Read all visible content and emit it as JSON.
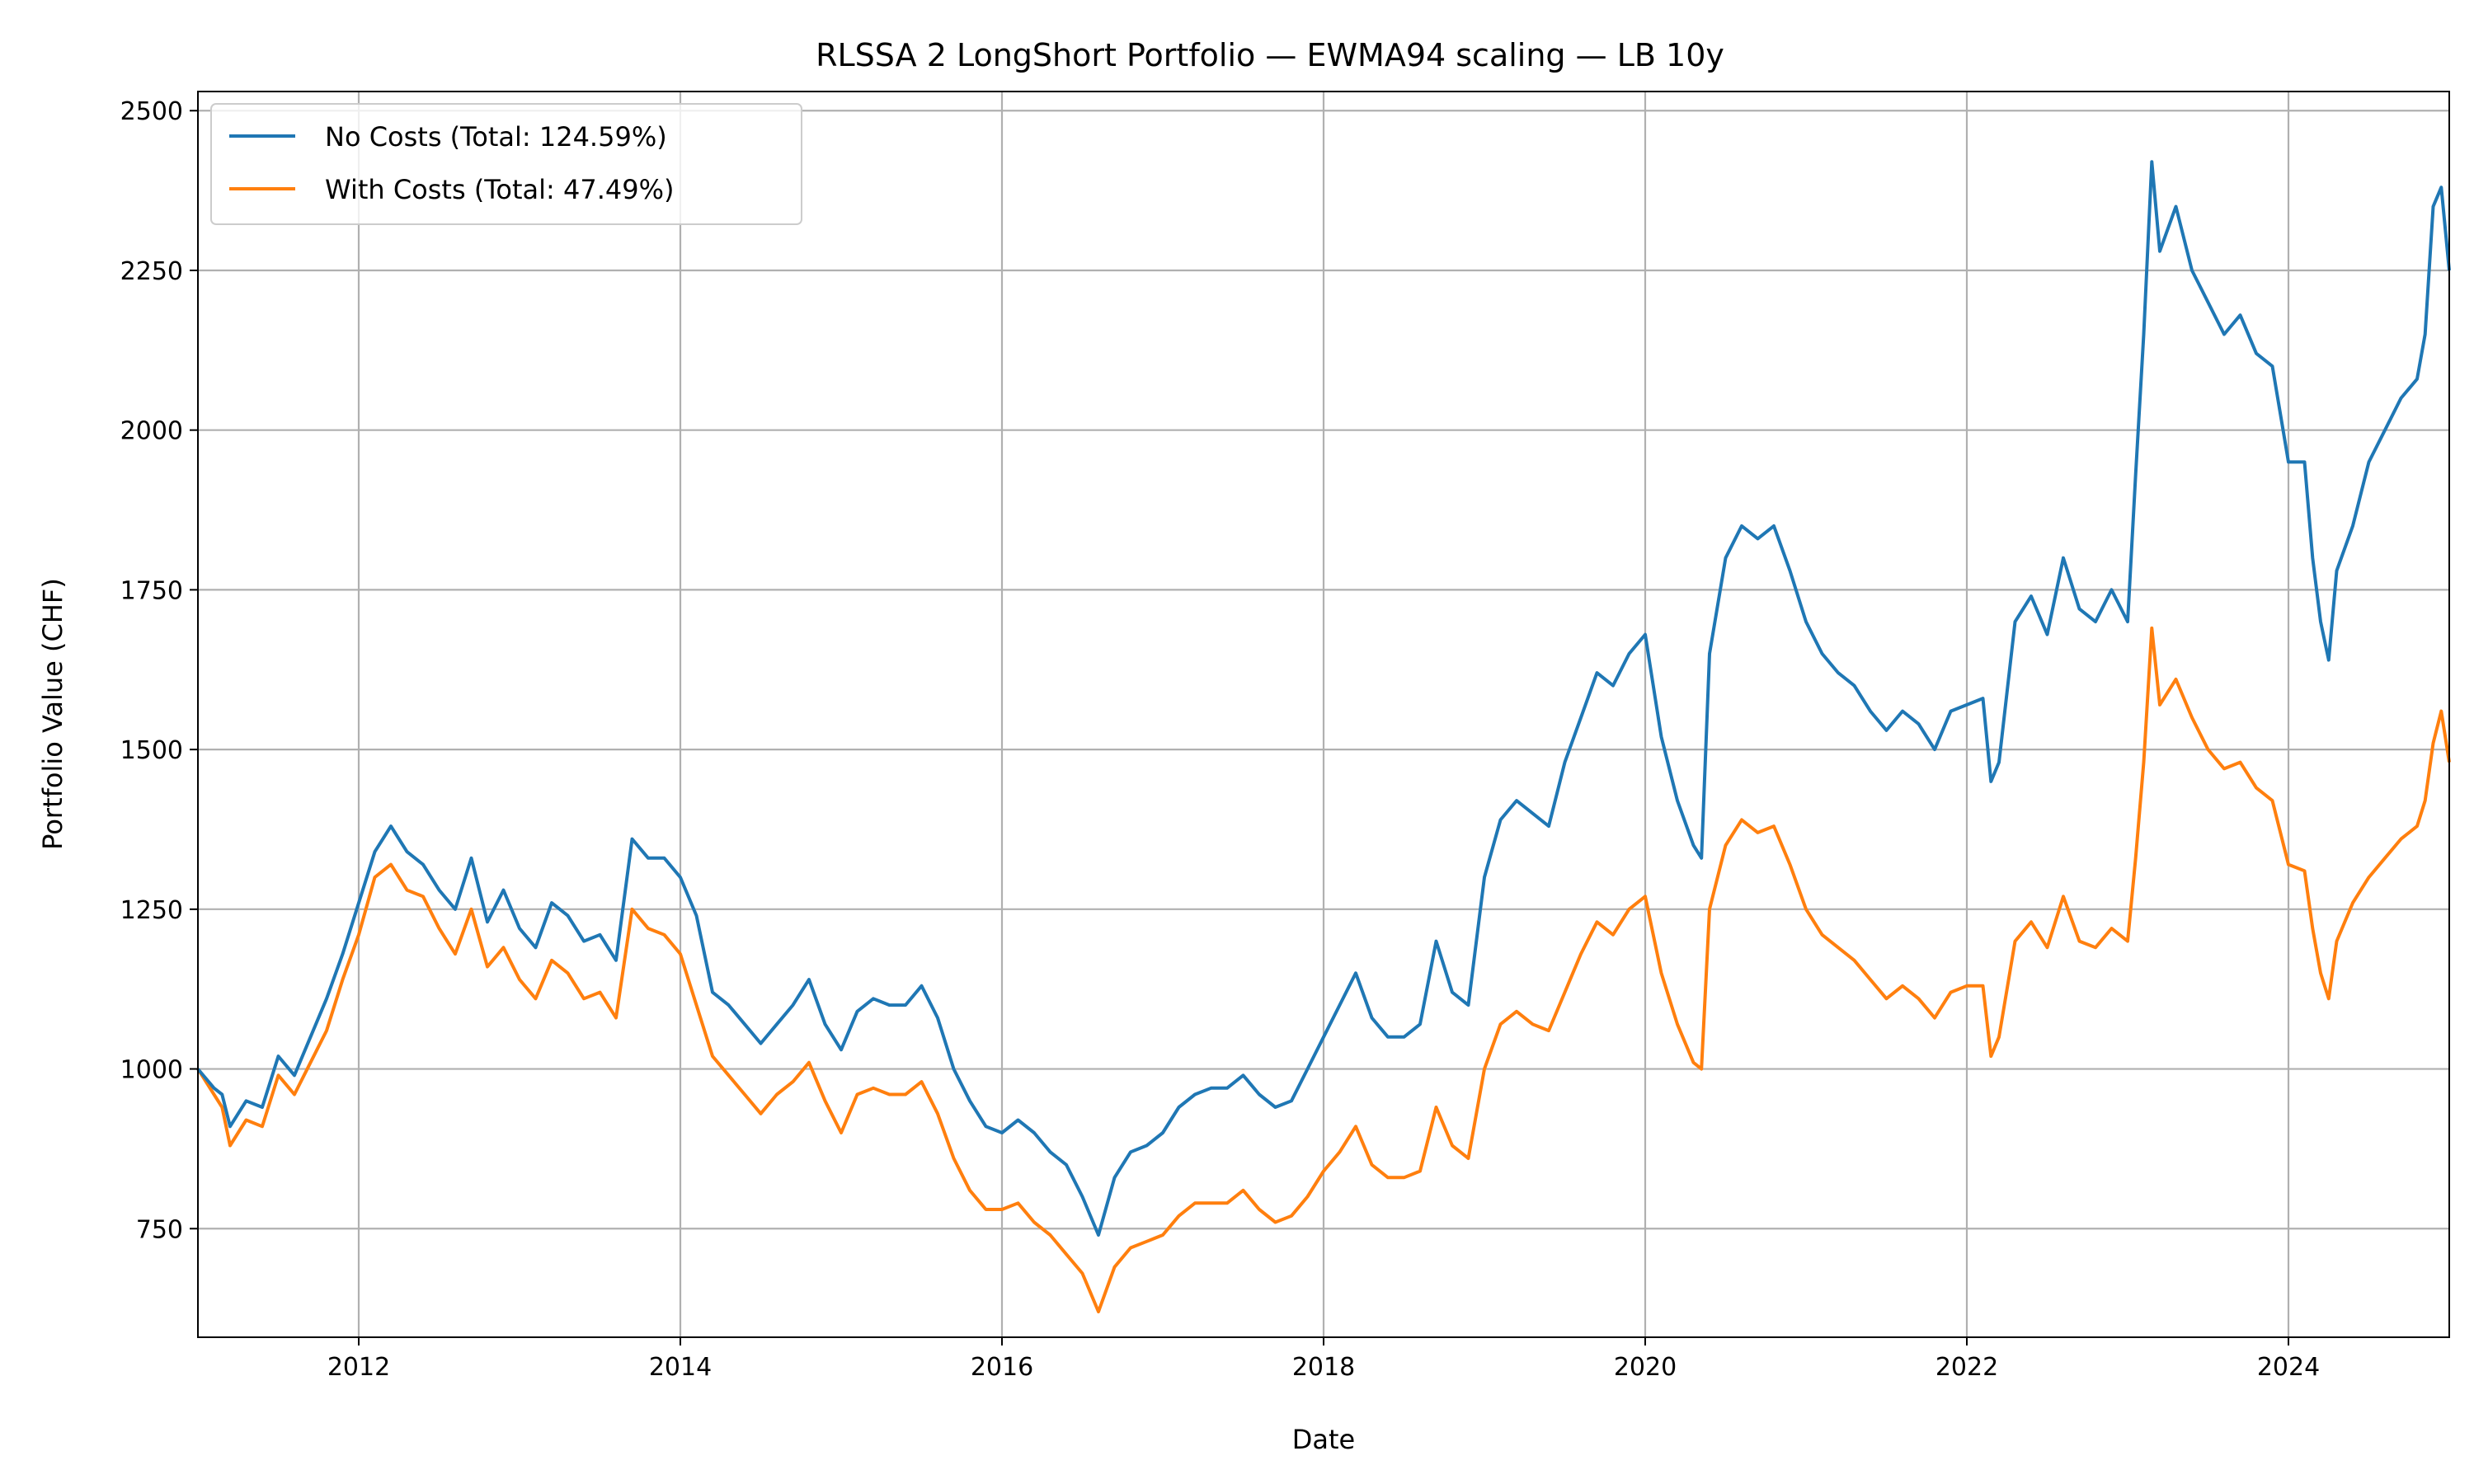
{
  "chart_data": {
    "type": "line",
    "title": "RLSSA 2 LongShort Portfolio — EWMA94 scaling — LB 10y",
    "xlabel": "Date",
    "ylabel": "Portfolio Value (CHF)",
    "x_range": [
      2011.0,
      2025.0
    ],
    "ylim": [
      580,
      2530
    ],
    "x_ticks": [
      2012,
      2014,
      2016,
      2018,
      2020,
      2022,
      2024
    ],
    "y_ticks": [
      750,
      1000,
      1250,
      1500,
      1750,
      2000,
      2250,
      2500
    ],
    "grid": true,
    "legend_position": "top-left",
    "series": [
      {
        "name": "No Costs (Total: 124.59%)",
        "color": "#1f77b4",
        "points": [
          [
            2011.0,
            1000
          ],
          [
            2011.1,
            970
          ],
          [
            2011.15,
            960
          ],
          [
            2011.2,
            910
          ],
          [
            2011.3,
            950
          ],
          [
            2011.4,
            940
          ],
          [
            2011.5,
            1020
          ],
          [
            2011.6,
            990
          ],
          [
            2011.7,
            1050
          ],
          [
            2011.8,
            1110
          ],
          [
            2011.9,
            1180
          ],
          [
            2012.0,
            1260
          ],
          [
            2012.1,
            1340
          ],
          [
            2012.2,
            1380
          ],
          [
            2012.3,
            1340
          ],
          [
            2012.4,
            1320
          ],
          [
            2012.5,
            1280
          ],
          [
            2012.6,
            1250
          ],
          [
            2012.7,
            1330
          ],
          [
            2012.8,
            1230
          ],
          [
            2012.9,
            1280
          ],
          [
            2013.0,
            1220
          ],
          [
            2013.1,
            1190
          ],
          [
            2013.2,
            1260
          ],
          [
            2013.3,
            1240
          ],
          [
            2013.4,
            1200
          ],
          [
            2013.5,
            1210
          ],
          [
            2013.6,
            1170
          ],
          [
            2013.7,
            1360
          ],
          [
            2013.8,
            1330
          ],
          [
            2013.9,
            1330
          ],
          [
            2014.0,
            1300
          ],
          [
            2014.1,
            1240
          ],
          [
            2014.2,
            1120
          ],
          [
            2014.3,
            1100
          ],
          [
            2014.4,
            1070
          ],
          [
            2014.5,
            1040
          ],
          [
            2014.6,
            1070
          ],
          [
            2014.7,
            1100
          ],
          [
            2014.8,
            1140
          ],
          [
            2014.9,
            1070
          ],
          [
            2015.0,
            1030
          ],
          [
            2015.1,
            1090
          ],
          [
            2015.2,
            1110
          ],
          [
            2015.3,
            1100
          ],
          [
            2015.4,
            1100
          ],
          [
            2015.5,
            1130
          ],
          [
            2015.6,
            1080
          ],
          [
            2015.7,
            1000
          ],
          [
            2015.8,
            950
          ],
          [
            2015.9,
            910
          ],
          [
            2016.0,
            900
          ],
          [
            2016.1,
            920
          ],
          [
            2016.2,
            900
          ],
          [
            2016.3,
            870
          ],
          [
            2016.4,
            850
          ],
          [
            2016.5,
            800
          ],
          [
            2016.6,
            740
          ],
          [
            2016.7,
            830
          ],
          [
            2016.8,
            870
          ],
          [
            2016.9,
            880
          ],
          [
            2017.0,
            900
          ],
          [
            2017.1,
            940
          ],
          [
            2017.2,
            960
          ],
          [
            2017.3,
            970
          ],
          [
            2017.4,
            970
          ],
          [
            2017.5,
            990
          ],
          [
            2017.6,
            960
          ],
          [
            2017.7,
            940
          ],
          [
            2017.8,
            950
          ],
          [
            2017.9,
            1000
          ],
          [
            2018.0,
            1050
          ],
          [
            2018.1,
            1100
          ],
          [
            2018.2,
            1150
          ],
          [
            2018.3,
            1080
          ],
          [
            2018.4,
            1050
          ],
          [
            2018.5,
            1050
          ],
          [
            2018.6,
            1070
          ],
          [
            2018.7,
            1200
          ],
          [
            2018.8,
            1120
          ],
          [
            2018.9,
            1100
          ],
          [
            2019.0,
            1300
          ],
          [
            2019.1,
            1390
          ],
          [
            2019.2,
            1420
          ],
          [
            2019.3,
            1400
          ],
          [
            2019.4,
            1380
          ],
          [
            2019.5,
            1480
          ],
          [
            2019.6,
            1550
          ],
          [
            2019.7,
            1620
          ],
          [
            2019.8,
            1600
          ],
          [
            2019.9,
            1650
          ],
          [
            2020.0,
            1680
          ],
          [
            2020.1,
            1520
          ],
          [
            2020.2,
            1420
          ],
          [
            2020.3,
            1350
          ],
          [
            2020.35,
            1330
          ],
          [
            2020.4,
            1650
          ],
          [
            2020.5,
            1800
          ],
          [
            2020.6,
            1850
          ],
          [
            2020.7,
            1830
          ],
          [
            2020.8,
            1850
          ],
          [
            2020.9,
            1780
          ],
          [
            2021.0,
            1700
          ],
          [
            2021.1,
            1650
          ],
          [
            2021.2,
            1620
          ],
          [
            2021.3,
            1600
          ],
          [
            2021.4,
            1560
          ],
          [
            2021.5,
            1530
          ],
          [
            2021.6,
            1560
          ],
          [
            2021.7,
            1540
          ],
          [
            2021.8,
            1500
          ],
          [
            2021.9,
            1560
          ],
          [
            2022.0,
            1570
          ],
          [
            2022.1,
            1580
          ],
          [
            2022.15,
            1450
          ],
          [
            2022.2,
            1480
          ],
          [
            2022.3,
            1700
          ],
          [
            2022.4,
            1740
          ],
          [
            2022.5,
            1680
          ],
          [
            2022.6,
            1800
          ],
          [
            2022.7,
            1720
          ],
          [
            2022.8,
            1700
          ],
          [
            2022.9,
            1750
          ],
          [
            2023.0,
            1700
          ],
          [
            2023.05,
            1930
          ],
          [
            2023.1,
            2150
          ],
          [
            2023.15,
            2420
          ],
          [
            2023.2,
            2280
          ],
          [
            2023.3,
            2350
          ],
          [
            2023.4,
            2250
          ],
          [
            2023.5,
            2200
          ],
          [
            2023.6,
            2150
          ],
          [
            2023.7,
            2180
          ],
          [
            2023.8,
            2120
          ],
          [
            2023.9,
            2100
          ],
          [
            2024.0,
            1950
          ],
          [
            2024.1,
            1950
          ],
          [
            2024.15,
            1800
          ],
          [
            2024.2,
            1700
          ],
          [
            2024.25,
            1640
          ],
          [
            2024.3,
            1780
          ],
          [
            2024.4,
            1850
          ],
          [
            2024.5,
            1950
          ],
          [
            2024.6,
            2000
          ],
          [
            2024.7,
            2050
          ],
          [
            2024.8,
            2080
          ],
          [
            2024.85,
            2150
          ],
          [
            2024.9,
            2350
          ],
          [
            2024.95,
            2380
          ],
          [
            2025.0,
            2250
          ]
        ]
      },
      {
        "name": "With Costs (Total: 47.49%)",
        "color": "#ff7f0e",
        "points": [
          [
            2011.0,
            1000
          ],
          [
            2011.1,
            960
          ],
          [
            2011.15,
            940
          ],
          [
            2011.2,
            880
          ],
          [
            2011.3,
            920
          ],
          [
            2011.4,
            910
          ],
          [
            2011.5,
            990
          ],
          [
            2011.6,
            960
          ],
          [
            2011.7,
            1010
          ],
          [
            2011.8,
            1060
          ],
          [
            2011.9,
            1140
          ],
          [
            2012.0,
            1210
          ],
          [
            2012.1,
            1300
          ],
          [
            2012.2,
            1320
          ],
          [
            2012.3,
            1280
          ],
          [
            2012.4,
            1270
          ],
          [
            2012.5,
            1220
          ],
          [
            2012.6,
            1180
          ],
          [
            2012.7,
            1250
          ],
          [
            2012.8,
            1160
          ],
          [
            2012.9,
            1190
          ],
          [
            2013.0,
            1140
          ],
          [
            2013.1,
            1110
          ],
          [
            2013.2,
            1170
          ],
          [
            2013.3,
            1150
          ],
          [
            2013.4,
            1110
          ],
          [
            2013.5,
            1120
          ],
          [
            2013.6,
            1080
          ],
          [
            2013.7,
            1250
          ],
          [
            2013.8,
            1220
          ],
          [
            2013.9,
            1210
          ],
          [
            2014.0,
            1180
          ],
          [
            2014.1,
            1100
          ],
          [
            2014.2,
            1020
          ],
          [
            2014.3,
            990
          ],
          [
            2014.4,
            960
          ],
          [
            2014.5,
            930
          ],
          [
            2014.6,
            960
          ],
          [
            2014.7,
            980
          ],
          [
            2014.8,
            1010
          ],
          [
            2014.9,
            950
          ],
          [
            2015.0,
            900
          ],
          [
            2015.1,
            960
          ],
          [
            2015.2,
            970
          ],
          [
            2015.3,
            960
          ],
          [
            2015.4,
            960
          ],
          [
            2015.5,
            980
          ],
          [
            2015.6,
            930
          ],
          [
            2015.7,
            860
          ],
          [
            2015.8,
            810
          ],
          [
            2015.9,
            780
          ],
          [
            2016.0,
            780
          ],
          [
            2016.1,
            790
          ],
          [
            2016.2,
            760
          ],
          [
            2016.3,
            740
          ],
          [
            2016.4,
            710
          ],
          [
            2016.5,
            680
          ],
          [
            2016.6,
            620
          ],
          [
            2016.7,
            690
          ],
          [
            2016.8,
            720
          ],
          [
            2016.9,
            730
          ],
          [
            2017.0,
            740
          ],
          [
            2017.1,
            770
          ],
          [
            2017.2,
            790
          ],
          [
            2017.3,
            790
          ],
          [
            2017.4,
            790
          ],
          [
            2017.5,
            810
          ],
          [
            2017.6,
            780
          ],
          [
            2017.7,
            760
          ],
          [
            2017.8,
            770
          ],
          [
            2017.9,
            800
          ],
          [
            2018.0,
            840
          ],
          [
            2018.1,
            870
          ],
          [
            2018.2,
            910
          ],
          [
            2018.3,
            850
          ],
          [
            2018.4,
            830
          ],
          [
            2018.5,
            830
          ],
          [
            2018.6,
            840
          ],
          [
            2018.7,
            940
          ],
          [
            2018.8,
            880
          ],
          [
            2018.9,
            860
          ],
          [
            2019.0,
            1000
          ],
          [
            2019.1,
            1070
          ],
          [
            2019.2,
            1090
          ],
          [
            2019.3,
            1070
          ],
          [
            2019.4,
            1060
          ],
          [
            2019.5,
            1120
          ],
          [
            2019.6,
            1180
          ],
          [
            2019.7,
            1230
          ],
          [
            2019.8,
            1210
          ],
          [
            2019.9,
            1250
          ],
          [
            2020.0,
            1270
          ],
          [
            2020.1,
            1150
          ],
          [
            2020.2,
            1070
          ],
          [
            2020.3,
            1010
          ],
          [
            2020.35,
            1000
          ],
          [
            2020.4,
            1250
          ],
          [
            2020.5,
            1350
          ],
          [
            2020.6,
            1390
          ],
          [
            2020.7,
            1370
          ],
          [
            2020.8,
            1380
          ],
          [
            2020.9,
            1320
          ],
          [
            2021.0,
            1250
          ],
          [
            2021.1,
            1210
          ],
          [
            2021.2,
            1190
          ],
          [
            2021.3,
            1170
          ],
          [
            2021.4,
            1140
          ],
          [
            2021.5,
            1110
          ],
          [
            2021.6,
            1130
          ],
          [
            2021.7,
            1110
          ],
          [
            2021.8,
            1080
          ],
          [
            2021.9,
            1120
          ],
          [
            2022.0,
            1130
          ],
          [
            2022.1,
            1130
          ],
          [
            2022.15,
            1020
          ],
          [
            2022.2,
            1050
          ],
          [
            2022.3,
            1200
          ],
          [
            2022.4,
            1230
          ],
          [
            2022.5,
            1190
          ],
          [
            2022.6,
            1270
          ],
          [
            2022.7,
            1200
          ],
          [
            2022.8,
            1190
          ],
          [
            2022.9,
            1220
          ],
          [
            2023.0,
            1200
          ],
          [
            2023.05,
            1330
          ],
          [
            2023.1,
            1480
          ],
          [
            2023.15,
            1690
          ],
          [
            2023.2,
            1570
          ],
          [
            2023.3,
            1610
          ],
          [
            2023.4,
            1550
          ],
          [
            2023.5,
            1500
          ],
          [
            2023.6,
            1470
          ],
          [
            2023.7,
            1480
          ],
          [
            2023.8,
            1440
          ],
          [
            2023.9,
            1420
          ],
          [
            2024.0,
            1320
          ],
          [
            2024.1,
            1310
          ],
          [
            2024.15,
            1220
          ],
          [
            2024.2,
            1150
          ],
          [
            2024.25,
            1110
          ],
          [
            2024.3,
            1200
          ],
          [
            2024.4,
            1260
          ],
          [
            2024.5,
            1300
          ],
          [
            2024.6,
            1330
          ],
          [
            2024.7,
            1360
          ],
          [
            2024.8,
            1380
          ],
          [
            2024.85,
            1420
          ],
          [
            2024.9,
            1510
          ],
          [
            2024.95,
            1560
          ],
          [
            2025.0,
            1480
          ]
        ]
      }
    ]
  }
}
